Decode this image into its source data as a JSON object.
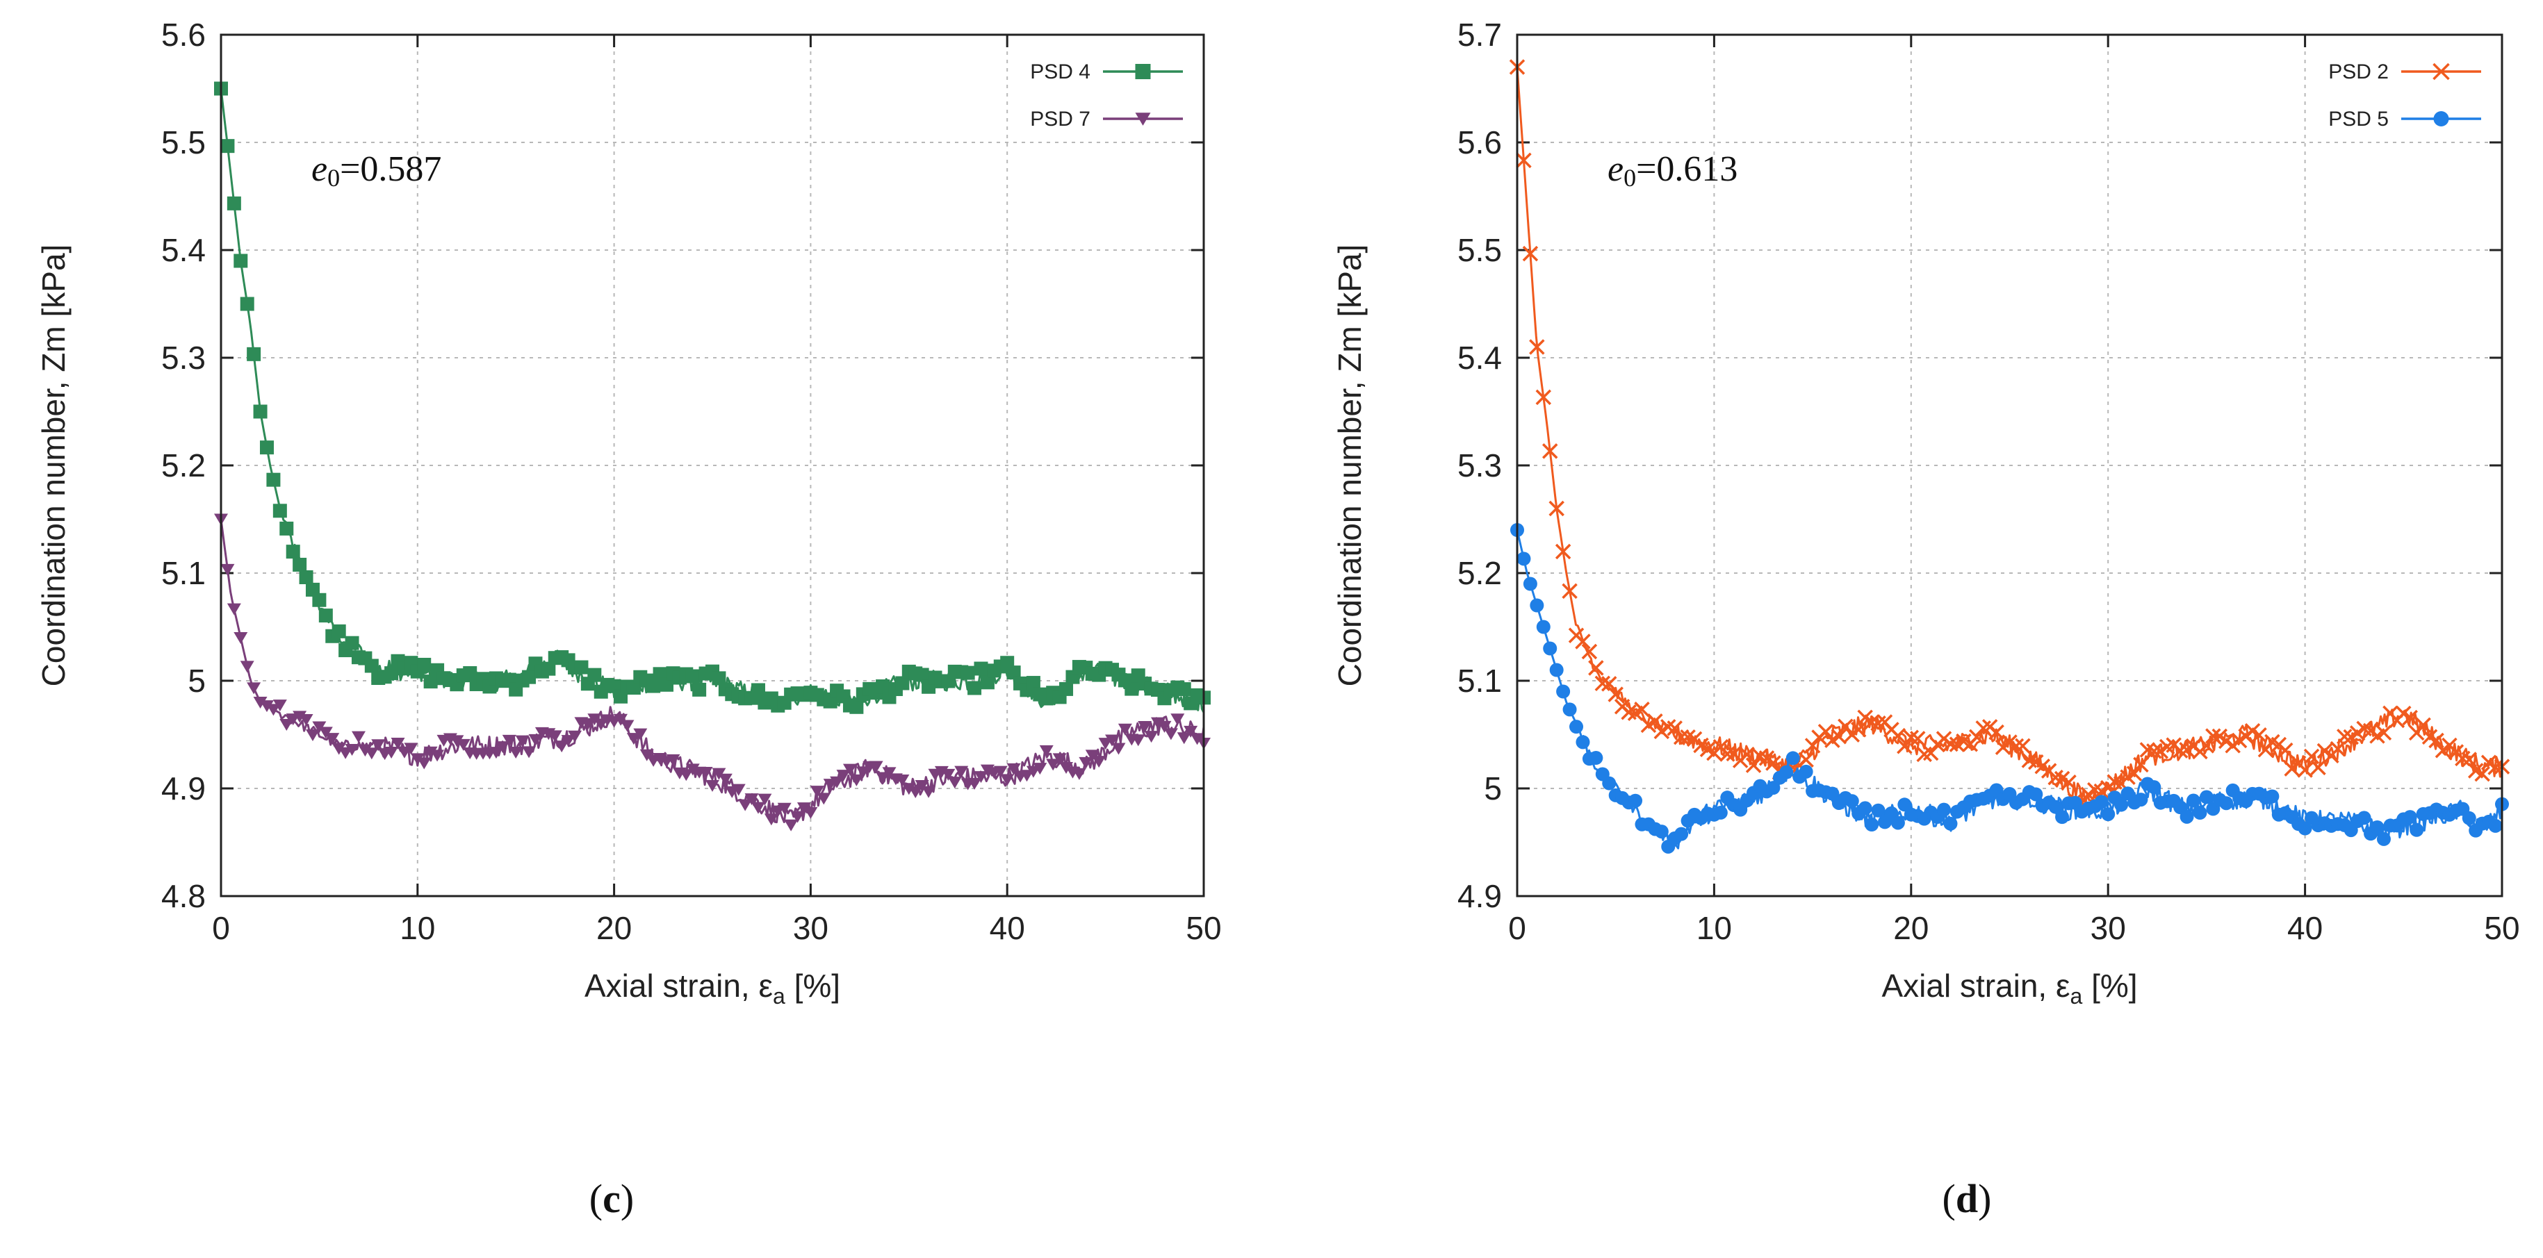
{
  "chart_data": [
    {
      "type": "line",
      "panel_label": "(c)",
      "annotation": {
        "var": "e",
        "sub": "0",
        "text": "=0.587"
      },
      "xlabel": "Axial strain,  ε",
      "xlabel_sub": "a",
      "xlabel_unit": " [%]",
      "ylabel": "Coordination number, Zm [kPa]",
      "xlim": [
        0,
        50
      ],
      "ylim": [
        4.8,
        5.6
      ],
      "xticks": [
        0,
        10,
        20,
        30,
        40,
        50
      ],
      "xtick_labels": [
        "0",
        "10",
        "20",
        "30",
        "40",
        "50"
      ],
      "yticks": [
        4.8,
        4.9,
        5.0,
        5.1,
        5.2,
        5.3,
        5.4,
        5.5,
        5.6
      ],
      "ytick_labels": [
        "4.8",
        "4.9",
        "5",
        "5.1",
        "5.2",
        "5.3",
        "5.4",
        "5.5",
        "5.6"
      ],
      "grid": true,
      "legend_position": "top-right",
      "series": [
        {
          "name": "PSD 4",
          "color": "#2e8b57",
          "marker": "square",
          "x": [
            0,
            0.5,
            1,
            1.5,
            2,
            2.5,
            3,
            4,
            5,
            6,
            7,
            8,
            10,
            12,
            15,
            17,
            20,
            22,
            25,
            28,
            30,
            32,
            35,
            38,
            40,
            42,
            44,
            46,
            48,
            50
          ],
          "y": [
            5.55,
            5.47,
            5.39,
            5.33,
            5.25,
            5.2,
            5.16,
            5.11,
            5.07,
            5.04,
            5.03,
            5.01,
            5.01,
            5.0,
            5.0,
            5.02,
            4.99,
            5.0,
            5.0,
            4.98,
            4.99,
            4.98,
            5.0,
            5.0,
            5.01,
            4.98,
            5.01,
            5.0,
            4.99,
            4.98
          ]
        },
        {
          "name": "PSD 7",
          "color": "#7a3f7a",
          "marker": "triangle-down",
          "x": [
            0,
            0.5,
            1,
            1.5,
            2,
            3,
            4,
            5,
            6,
            8,
            10,
            12,
            15,
            18,
            20,
            22,
            25,
            27,
            29,
            31,
            33,
            35,
            37,
            40,
            42,
            44,
            46,
            48,
            50
          ],
          "y": [
            5.15,
            5.08,
            5.04,
            5.0,
            4.98,
            4.97,
            4.96,
            4.95,
            4.94,
            4.94,
            4.93,
            4.94,
            4.94,
            4.95,
            4.97,
            4.93,
            4.91,
            4.89,
            4.87,
            4.9,
            4.92,
            4.9,
            4.91,
            4.91,
            4.93,
            4.92,
            4.95,
            4.96,
            4.95
          ]
        }
      ]
    },
    {
      "type": "line",
      "panel_label": "(d)",
      "annotation": {
        "var": "e",
        "sub": "0",
        "text": "=0.613"
      },
      "xlabel": "Axial strain,  ε",
      "xlabel_sub": "a",
      "xlabel_unit": " [%]",
      "ylabel": "Coordination number, Zm [kPa]",
      "xlim": [
        0,
        50
      ],
      "ylim": [
        4.9,
        5.7
      ],
      "xticks": [
        0,
        10,
        20,
        30,
        40,
        50
      ],
      "xtick_labels": [
        "0",
        "10",
        "20",
        "30",
        "40",
        "50"
      ],
      "yticks": [
        4.9,
        5.0,
        5.1,
        5.2,
        5.3,
        5.4,
        5.5,
        5.6,
        5.7
      ],
      "ytick_labels": [
        "4.9",
        "5",
        "5.1",
        "5.2",
        "5.3",
        "5.4",
        "5.5",
        "5.6",
        "5.7"
      ],
      "grid": true,
      "legend_position": "top-right",
      "series": [
        {
          "name": "PSD 2",
          "color": "#f05a1e",
          "marker": "x",
          "x": [
            0,
            0.5,
            1,
            1.5,
            2,
            2.5,
            3,
            3.5,
            4,
            5,
            6,
            7,
            8,
            10,
            12,
            14,
            16,
            18,
            20,
            22,
            24,
            26,
            28,
            29,
            30,
            32,
            35,
            37,
            40,
            42,
            44,
            45,
            47,
            49,
            50
          ],
          "y": [
            5.67,
            5.54,
            5.41,
            5.34,
            5.26,
            5.2,
            5.15,
            5.13,
            5.11,
            5.09,
            5.07,
            5.06,
            5.05,
            5.04,
            5.03,
            5.02,
            5.05,
            5.06,
            5.04,
            5.04,
            5.05,
            5.03,
            5.0,
            4.99,
            5.0,
            5.03,
            5.04,
            5.05,
            5.02,
            5.04,
            5.06,
            5.07,
            5.04,
            5.02,
            5.02
          ]
        },
        {
          "name": "PSD 5",
          "color": "#1f7fe6",
          "marker": "circle",
          "x": [
            0,
            0.5,
            1,
            1.5,
            2,
            2.5,
            3,
            3.5,
            4,
            5,
            6,
            7,
            8,
            9,
            10,
            12,
            14,
            16,
            18,
            20,
            22,
            24,
            26,
            28,
            30,
            32,
            34,
            36,
            38,
            40,
            42,
            44,
            46,
            48,
            49,
            50
          ],
          "y": [
            5.24,
            5.2,
            5.17,
            5.14,
            5.11,
            5.08,
            5.06,
            5.04,
            5.02,
            5.0,
            4.98,
            4.96,
            4.95,
            4.97,
            4.98,
            4.99,
            5.02,
            4.99,
            4.97,
            4.98,
            4.97,
            4.99,
            4.99,
            4.98,
            4.98,
            5.0,
            4.98,
            4.99,
            4.99,
            4.97,
            4.97,
            4.96,
            4.97,
            4.98,
            4.96,
            4.98
          ]
        }
      ]
    }
  ]
}
